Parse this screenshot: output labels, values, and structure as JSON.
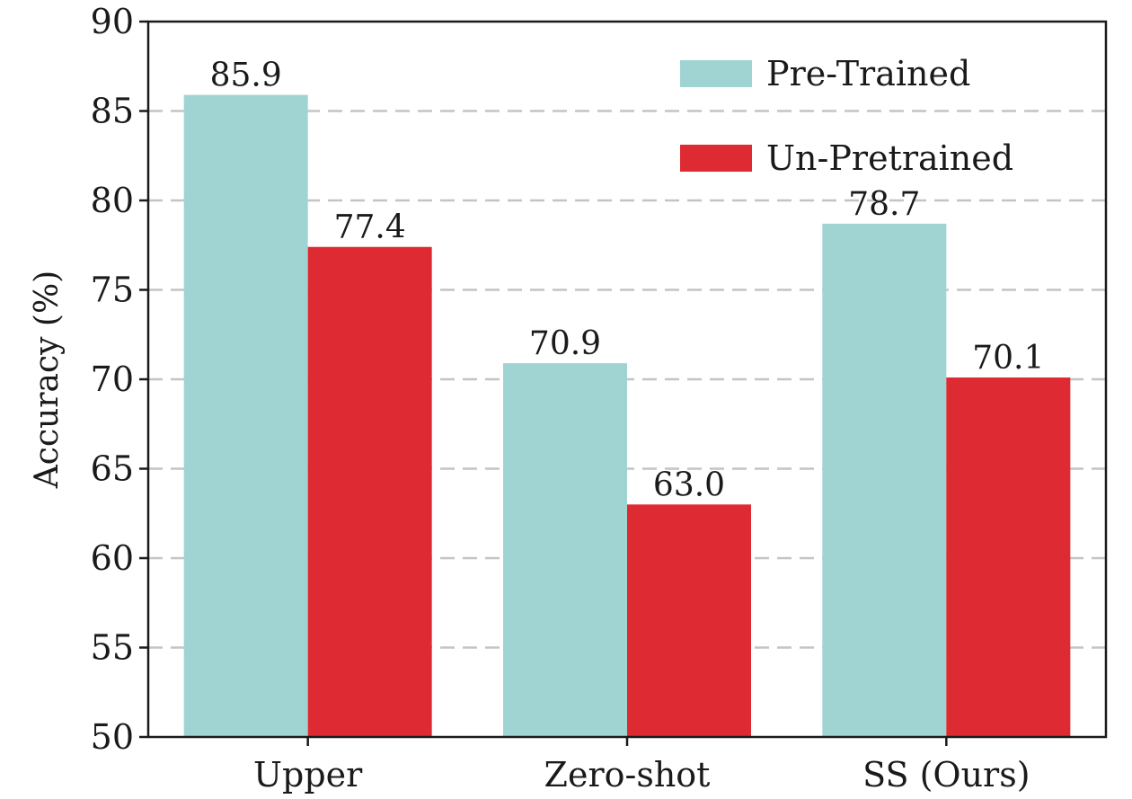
{
  "chart_data": {
    "type": "bar",
    "categories": [
      "Upper",
      "Zero-shot",
      "SS (Ours)"
    ],
    "series": [
      {
        "name": "Pre-Trained",
        "values": [
          85.9,
          70.9,
          78.7
        ],
        "color": "#9fd4d3"
      },
      {
        "name": "Un-Pretrained",
        "values": [
          77.4,
          63.0,
          70.1
        ],
        "color": "#de2a32"
      }
    ],
    "data_labels": [
      [
        "85.9",
        "70.9",
        "78.7"
      ],
      [
        "77.4",
        "63.0",
        "70.1"
      ]
    ],
    "ylabel": "Accuracy (%)",
    "xlabel": "",
    "ylim": [
      50,
      90
    ],
    "yticks": [
      50,
      55,
      60,
      65,
      70,
      75,
      80,
      85,
      90
    ],
    "grid": true,
    "legend_position": "top-right"
  }
}
